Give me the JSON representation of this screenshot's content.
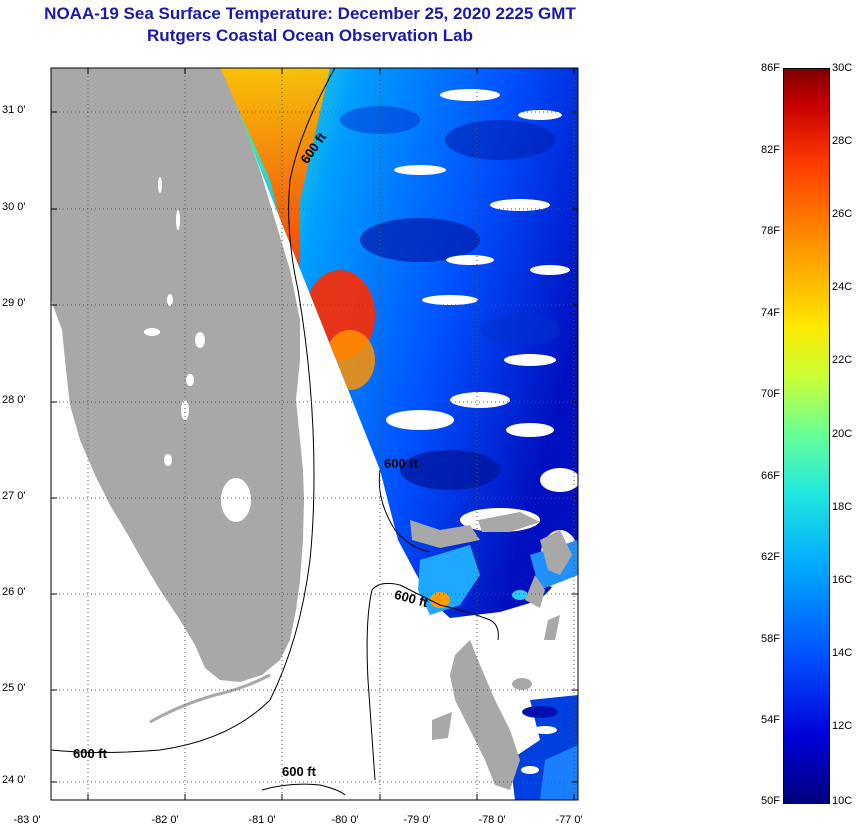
{
  "title": {
    "line1": "NOAA-19 Sea Surface Temperature:  December 25, 2020 2225 GMT",
    "line2": "Rutgers Coastal Ocean Observation Lab"
  },
  "map": {
    "lat_labels": [
      "31 0'",
      "30 0'",
      "29 0'",
      "28 0'",
      "27 0'",
      "26 0'",
      "25 0'",
      "24 0'"
    ],
    "lon_labels": [
      "-83 0'",
      "-82 0'",
      "-81 0'",
      "-80 0'",
      "-79 0'",
      "-78 0'",
      "-77 0'"
    ],
    "depth_labels": [
      "600 ft",
      "600 ft",
      "600 ft",
      "600 ft",
      "600 ft"
    ],
    "colors": {
      "land": "#a8a8a8",
      "no_data": "#ffffff",
      "contour": "#000000",
      "grid": "#555555"
    }
  },
  "colorbar": {
    "f_labels": [
      "86F",
      "82F",
      "78F",
      "74F",
      "70F",
      "66F",
      "62F",
      "58F",
      "54F",
      "50F"
    ],
    "c_labels": [
      "30C",
      "28C",
      "26C",
      "24C",
      "22C",
      "20C",
      "18C",
      "16C",
      "14C",
      "12C",
      "10C"
    ],
    "stops": [
      "#00007f",
      "#0000d8",
      "#0050ff",
      "#00a8ff",
      "#1fe6df",
      "#66ff99",
      "#c8ff36",
      "#ffe800",
      "#ff9c00",
      "#ff3c00",
      "#c80000",
      "#7f0000"
    ]
  }
}
